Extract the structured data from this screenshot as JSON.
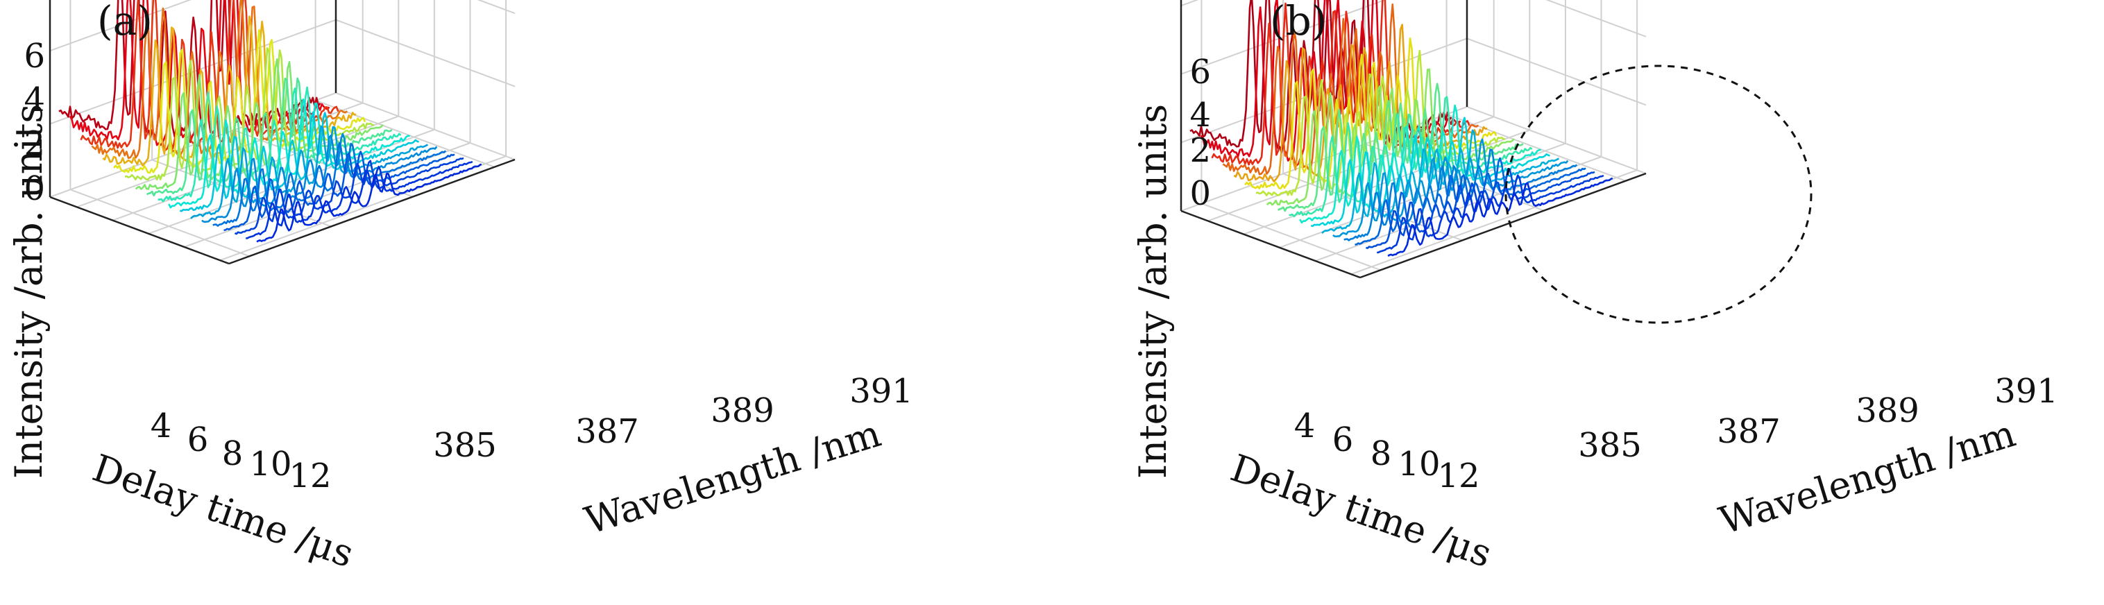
{
  "chart_data": [
    {
      "type": "line",
      "subtype": "waterfall-3d",
      "panel_label": "(a)",
      "zlabel": "Intensity /arb. units",
      "xlabel": "Delay time /μs",
      "ylabel": "Wavelength /nm",
      "x_ticks": [
        "4",
        "6",
        "8",
        "10",
        "12"
      ],
      "y_ticks": [
        "385",
        "387",
        "389",
        "391"
      ],
      "z_ticks": [
        "0",
        "2",
        "4",
        "6"
      ],
      "x_range": [
        2.5,
        12.5
      ],
      "y_range": [
        384.5,
        391.5
      ],
      "z_range": [
        0,
        6.8
      ],
      "grid": true,
      "colormap": "jet",
      "delay_times": [
        3,
        3.5,
        4,
        4.5,
        5,
        5.5,
        6,
        6.5,
        7,
        7.5,
        8,
        8.5,
        9,
        9.5,
        10,
        10.5,
        11,
        11.5,
        12
      ],
      "series_peak_wavelengths": [
        386.0,
        386.4,
        387.1,
        387.8,
        388.3,
        388.6
      ],
      "peak_intensity_by_delay": [
        6.6,
        6.2,
        5.8,
        5.3,
        4.8,
        4.3,
        3.9,
        3.5,
        3.1,
        2.8,
        2.5,
        2.2,
        1.9,
        1.7,
        1.5,
        1.3,
        1.1,
        1.0,
        0.9
      ],
      "baseline_by_delay": [
        2.6,
        2.3,
        2.0,
        1.8,
        1.6,
        1.4,
        1.2,
        1.0,
        0.9,
        0.8,
        0.7,
        0.6,
        0.5,
        0.45,
        0.4,
        0.35,
        0.3,
        0.25,
        0.2
      ]
    },
    {
      "type": "line",
      "subtype": "waterfall-3d",
      "panel_label": "(b)",
      "zlabel": "Intensity /arb. units",
      "xlabel": "Delay time /μs",
      "ylabel": "Wavelength /nm",
      "x_ticks": [
        "4",
        "6",
        "8",
        "10",
        "12"
      ],
      "y_ticks": [
        "385",
        "387",
        "389",
        "391"
      ],
      "z_ticks": [
        "0",
        "2",
        "4",
        "6"
      ],
      "x_range": [
        2.5,
        12.5
      ],
      "y_range": [
        384.5,
        391.5
      ],
      "z_range": [
        0,
        6.8
      ],
      "grid": true,
      "colormap": "jet",
      "annotation": "dashed circle highlighting peak region",
      "delay_times": [
        3,
        3.5,
        4,
        4.5,
        5,
        5.5,
        6,
        6.5,
        7,
        7.5,
        8,
        8.5,
        9,
        9.5,
        10,
        10.5,
        11,
        11.5,
        12
      ],
      "series_peak_wavelengths": [
        386.0,
        386.4,
        387.0,
        387.3,
        387.6,
        387.9,
        388.2,
        388.5,
        388.8
      ],
      "peak_intensity_by_delay": [
        6.7,
        6.3,
        5.9,
        5.4,
        4.9,
        4.4,
        4.0,
        3.6,
        3.2,
        2.9,
        2.6,
        2.3,
        2.0,
        1.8,
        1.6,
        1.4,
        1.2,
        1.05,
        0.9
      ],
      "baseline_by_delay": [
        2.6,
        2.3,
        2.0,
        1.8,
        1.6,
        1.4,
        1.2,
        1.0,
        0.9,
        0.8,
        0.7,
        0.6,
        0.5,
        0.45,
        0.4,
        0.35,
        0.3,
        0.25,
        0.2
      ]
    }
  ]
}
